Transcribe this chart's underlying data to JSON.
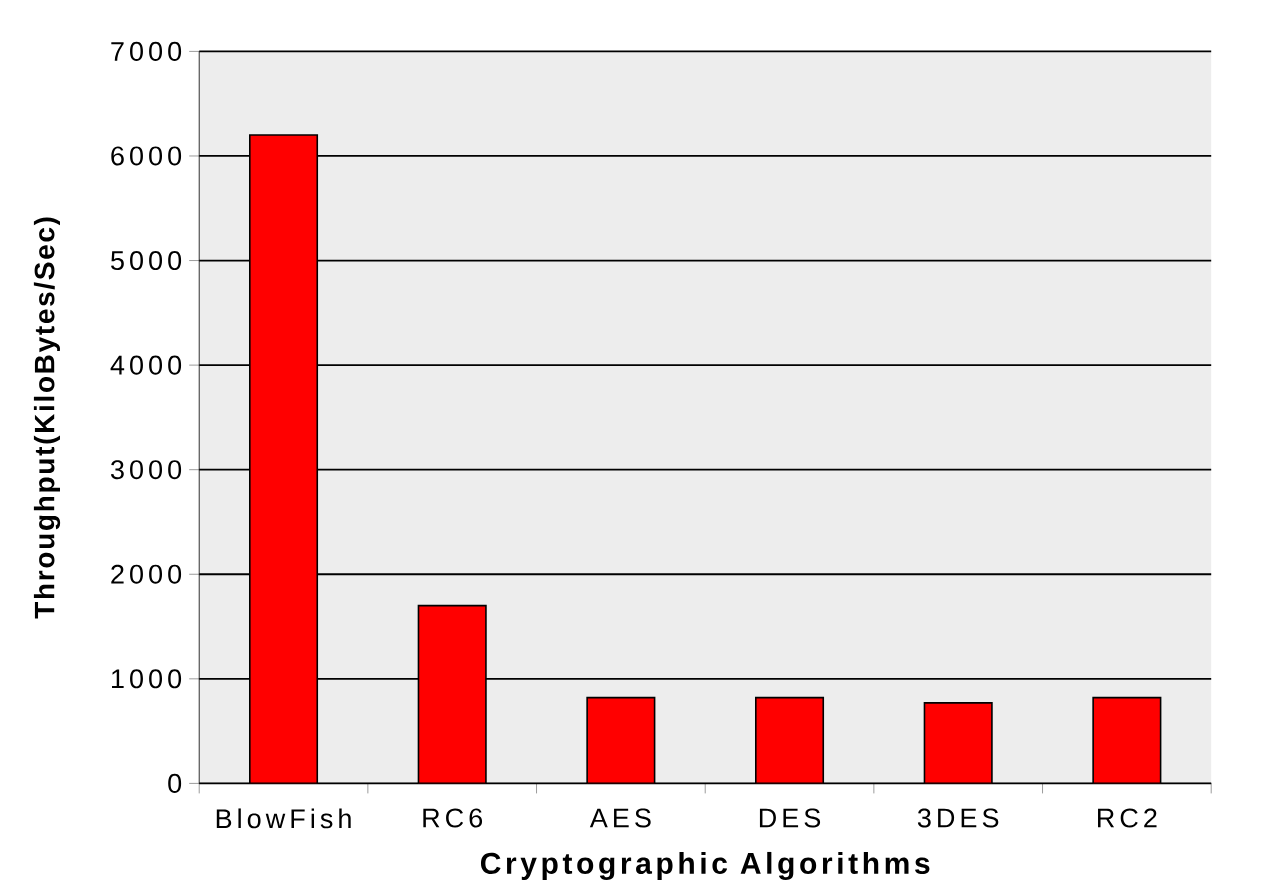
{
  "chart_data": {
    "type": "bar",
    "xlabel": "Cryptographic Algorithms",
    "ylabel": "Throughput(KiloBytes/Sec)",
    "categories": [
      "BlowFish",
      "RC6",
      "AES",
      "DES",
      "3DES",
      "RC2"
    ],
    "values": [
      6200,
      1700,
      820,
      820,
      770,
      820
    ],
    "color": "#ff0000",
    "ylim": [
      0,
      7000
    ],
    "yticks": [
      0,
      1000,
      2000,
      3000,
      4000,
      5000,
      6000,
      7000
    ],
    "grid": "y"
  }
}
